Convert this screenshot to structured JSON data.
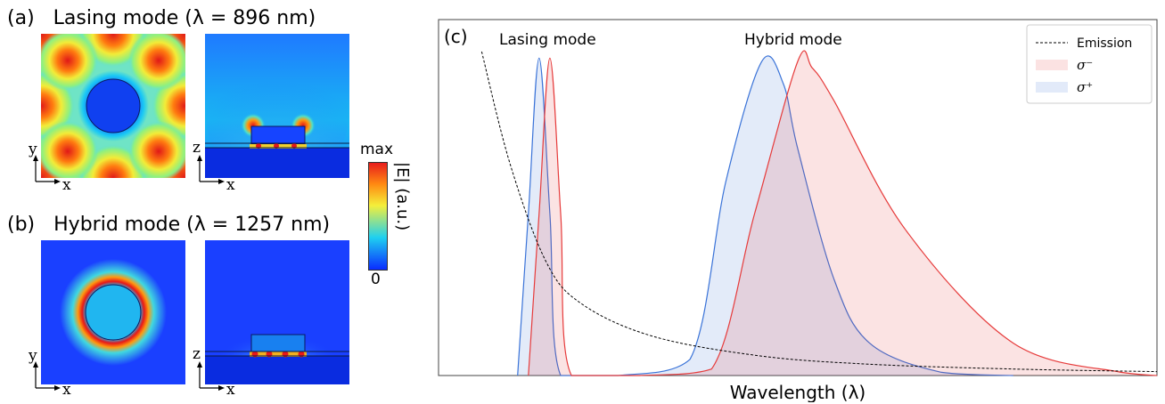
{
  "panel_a": {
    "tag": "(a)",
    "title": "Lasing mode (λ = 896 nm)"
  },
  "panel_b": {
    "tag": "(b)",
    "title": "Hybrid mode (λ = 1257 nm)"
  },
  "axes_labels": {
    "x": "x",
    "y": "y",
    "z": "z"
  },
  "colorbar": {
    "max_label": "max",
    "min_label": "0",
    "quantity": "|E| (a.u.)",
    "colors": [
      "#0a2cff",
      "#1fd0f0",
      "#f4ef3a",
      "#ff8a12",
      "#e81c1c"
    ]
  },
  "chart_data": {
    "type": "area",
    "panel_tag": "(c)",
    "xlabel": "Wavelength (λ)",
    "ylabel": "",
    "annotations": [
      "Lasing mode",
      "Hybrid mode"
    ],
    "legend": {
      "placement": "top-right",
      "entries": [
        {
          "label": "Emission",
          "style": "dashed-line",
          "color": "#000000"
        },
        {
          "label": "σ⁻",
          "style": "fill",
          "color": "#e63b3b"
        },
        {
          "label": "σ⁺",
          "style": "fill",
          "color": "#3a73d8"
        }
      ]
    },
    "x_range": [
      0,
      1
    ],
    "y_range": [
      0,
      1
    ],
    "series": [
      {
        "name": "σ⁺",
        "color": "#3a73d8",
        "x": [
          0.11,
          0.125,
          0.14,
          0.155,
          0.17,
          0.25,
          0.35,
          0.4,
          0.45,
          0.48,
          0.5,
          0.55,
          0.6,
          0.7,
          0.8
        ],
        "values": [
          0,
          0.5,
          0.98,
          0.5,
          0,
          0,
          0.05,
          0.6,
          0.97,
          0.9,
          0.7,
          0.3,
          0.1,
          0.01,
          0
        ]
      },
      {
        "name": "σ⁻",
        "color": "#e63b3b",
        "x": [
          0.125,
          0.14,
          0.155,
          0.17,
          0.185,
          0.28,
          0.38,
          0.44,
          0.5,
          0.52,
          0.55,
          0.65,
          0.8,
          0.95,
          1.0
        ],
        "values": [
          0,
          0.5,
          0.98,
          0.5,
          0,
          0,
          0.02,
          0.5,
          0.97,
          0.95,
          0.85,
          0.45,
          0.1,
          0.01,
          0
        ]
      },
      {
        "name": "Emission",
        "color": "#000000",
        "x": [
          0.06,
          0.1,
          0.15,
          0.2,
          0.3,
          0.45,
          0.6,
          0.8,
          1.0
        ],
        "values": [
          1.0,
          0.65,
          0.35,
          0.22,
          0.12,
          0.06,
          0.035,
          0.02,
          0.012
        ]
      }
    ]
  }
}
